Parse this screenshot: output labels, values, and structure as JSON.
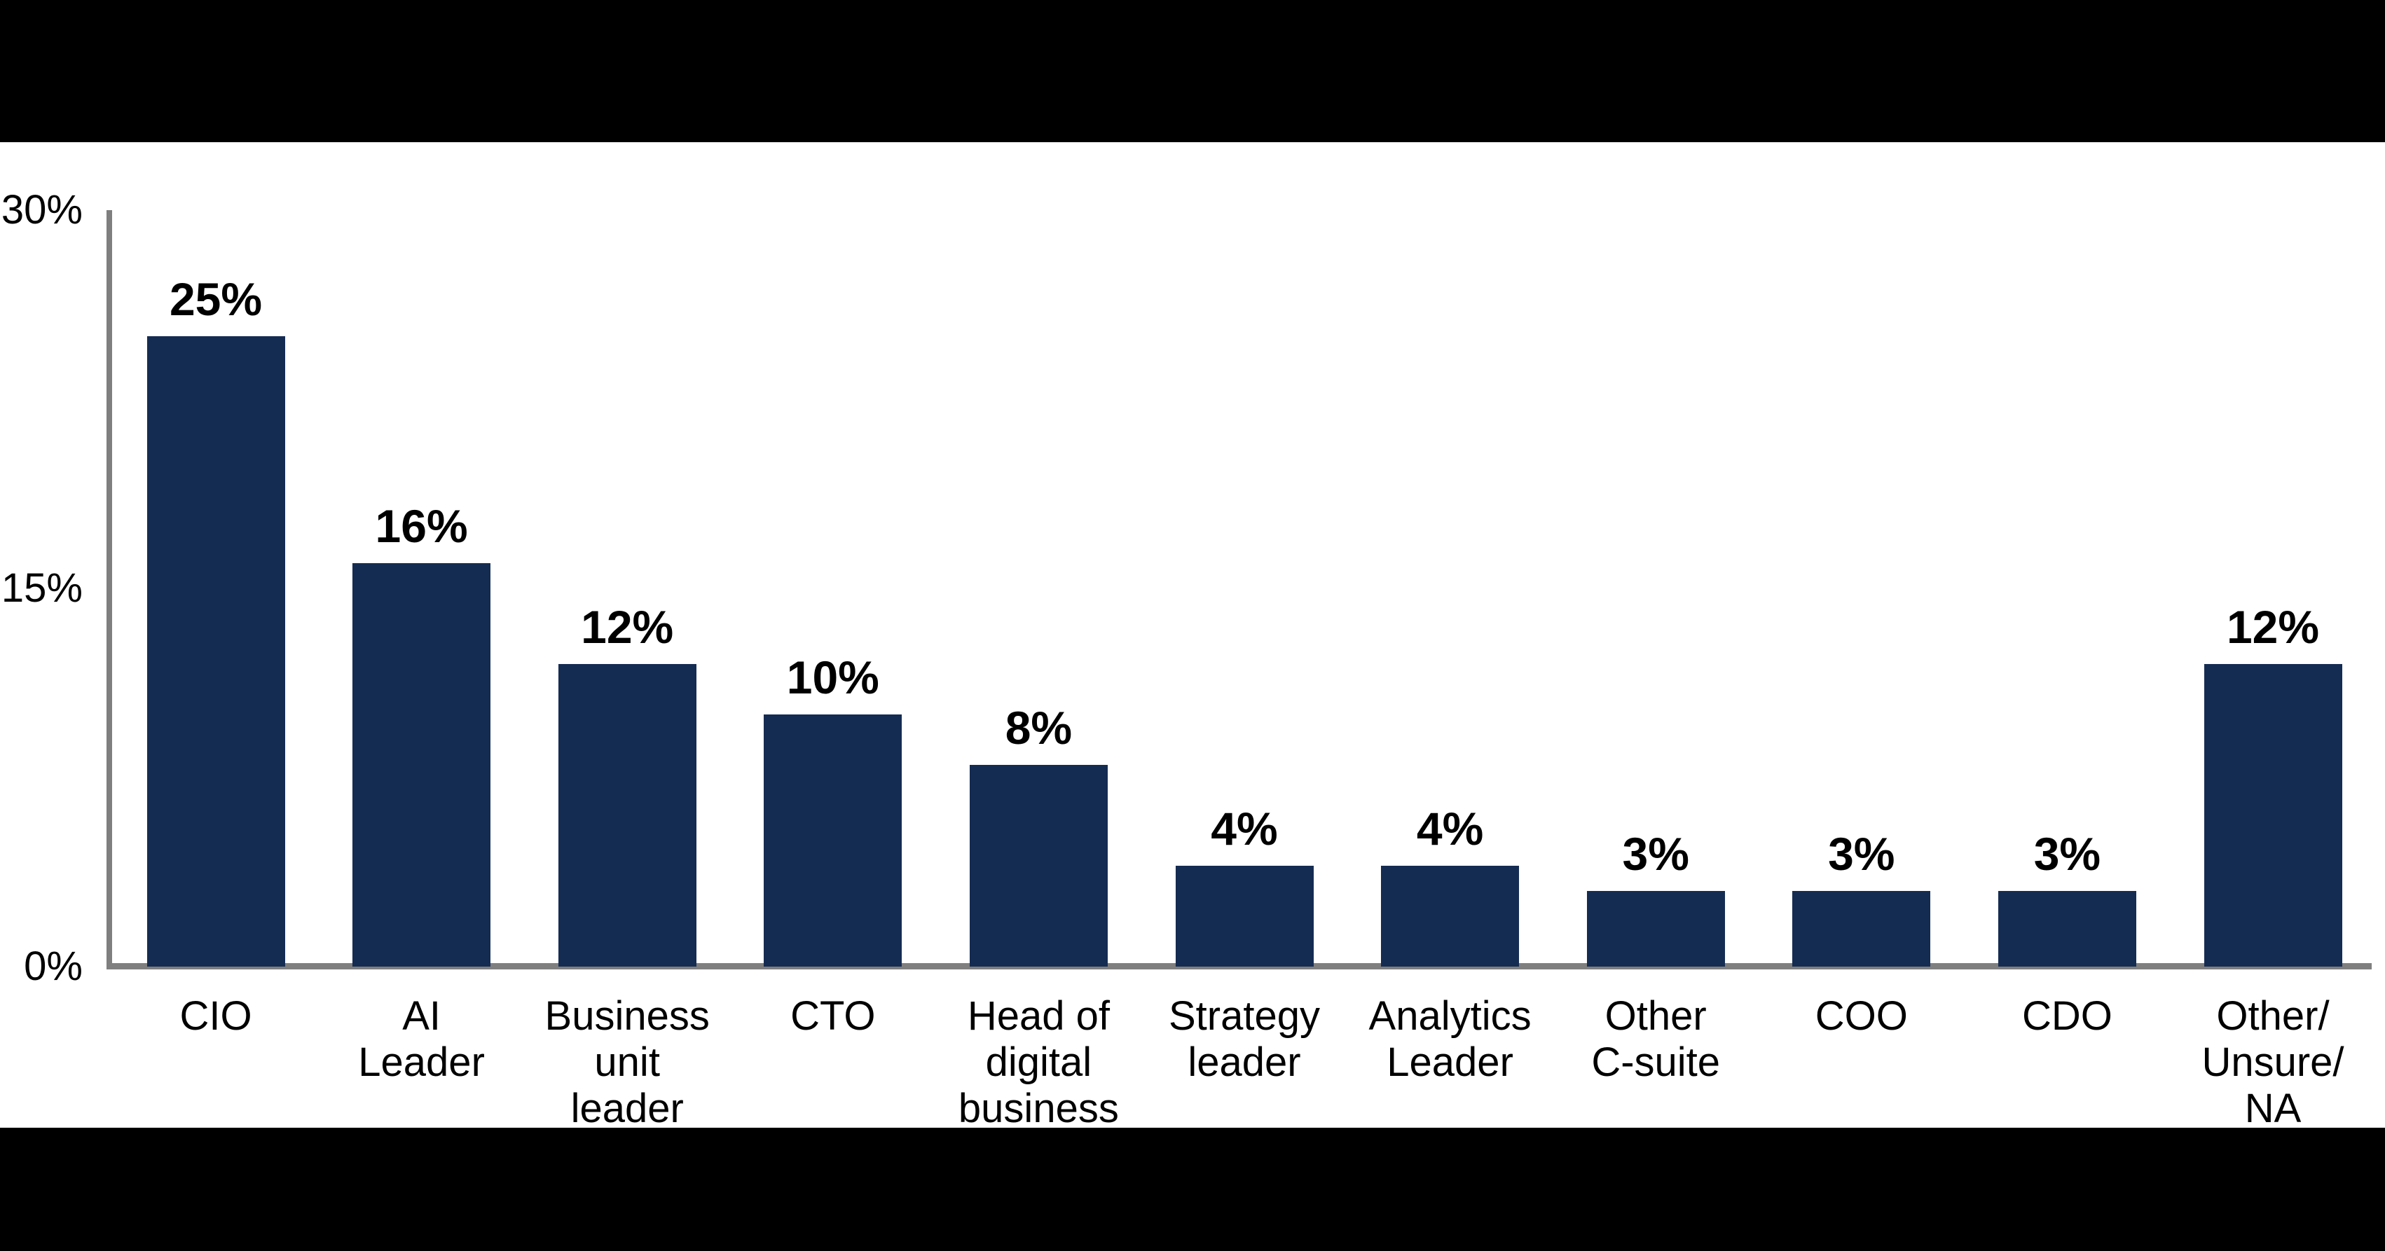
{
  "page": {
    "background_color": "#000000",
    "panel_background_color": "#FFFFFF"
  },
  "chart_data": {
    "type": "bar",
    "title": "",
    "xlabel": "",
    "ylabel": "",
    "categories": [
      "CIO",
      "AI Leader",
      "Business unit leader",
      "CTO",
      "Head of digital business",
      "Strategy leader",
      "Analytics Leader",
      "Other C-suite",
      "COO",
      "CDO",
      "Other/Unsure/NA"
    ],
    "category_display": [
      "CIO",
      "AI\nLeader",
      "Business\nunit\nleader",
      "CTO",
      "Head of\ndigital\nbusiness",
      "Strategy\nleader",
      "Analytics\nLeader",
      "Other\nC-suite",
      "COO",
      "CDO",
      "Other/\nUnsure/\nNA"
    ],
    "values": [
      25,
      16,
      12,
      10,
      8,
      4,
      4,
      3,
      3,
      3,
      12
    ],
    "value_labels": [
      "25%",
      "16%",
      "12%",
      "10%",
      "8%",
      "4%",
      "4%",
      "3%",
      "3%",
      "3%",
      "12%"
    ],
    "ylim": [
      0,
      30
    ],
    "yticks": [
      {
        "value": 30,
        "label": "30%"
      },
      {
        "value": 15,
        "label": "15%"
      },
      {
        "value": 0,
        "label": "0%"
      }
    ],
    "grid": false,
    "legend": "none",
    "bar_color": "#152C52",
    "axis_color": "#7F7F7F",
    "text_color": "#000000"
  }
}
